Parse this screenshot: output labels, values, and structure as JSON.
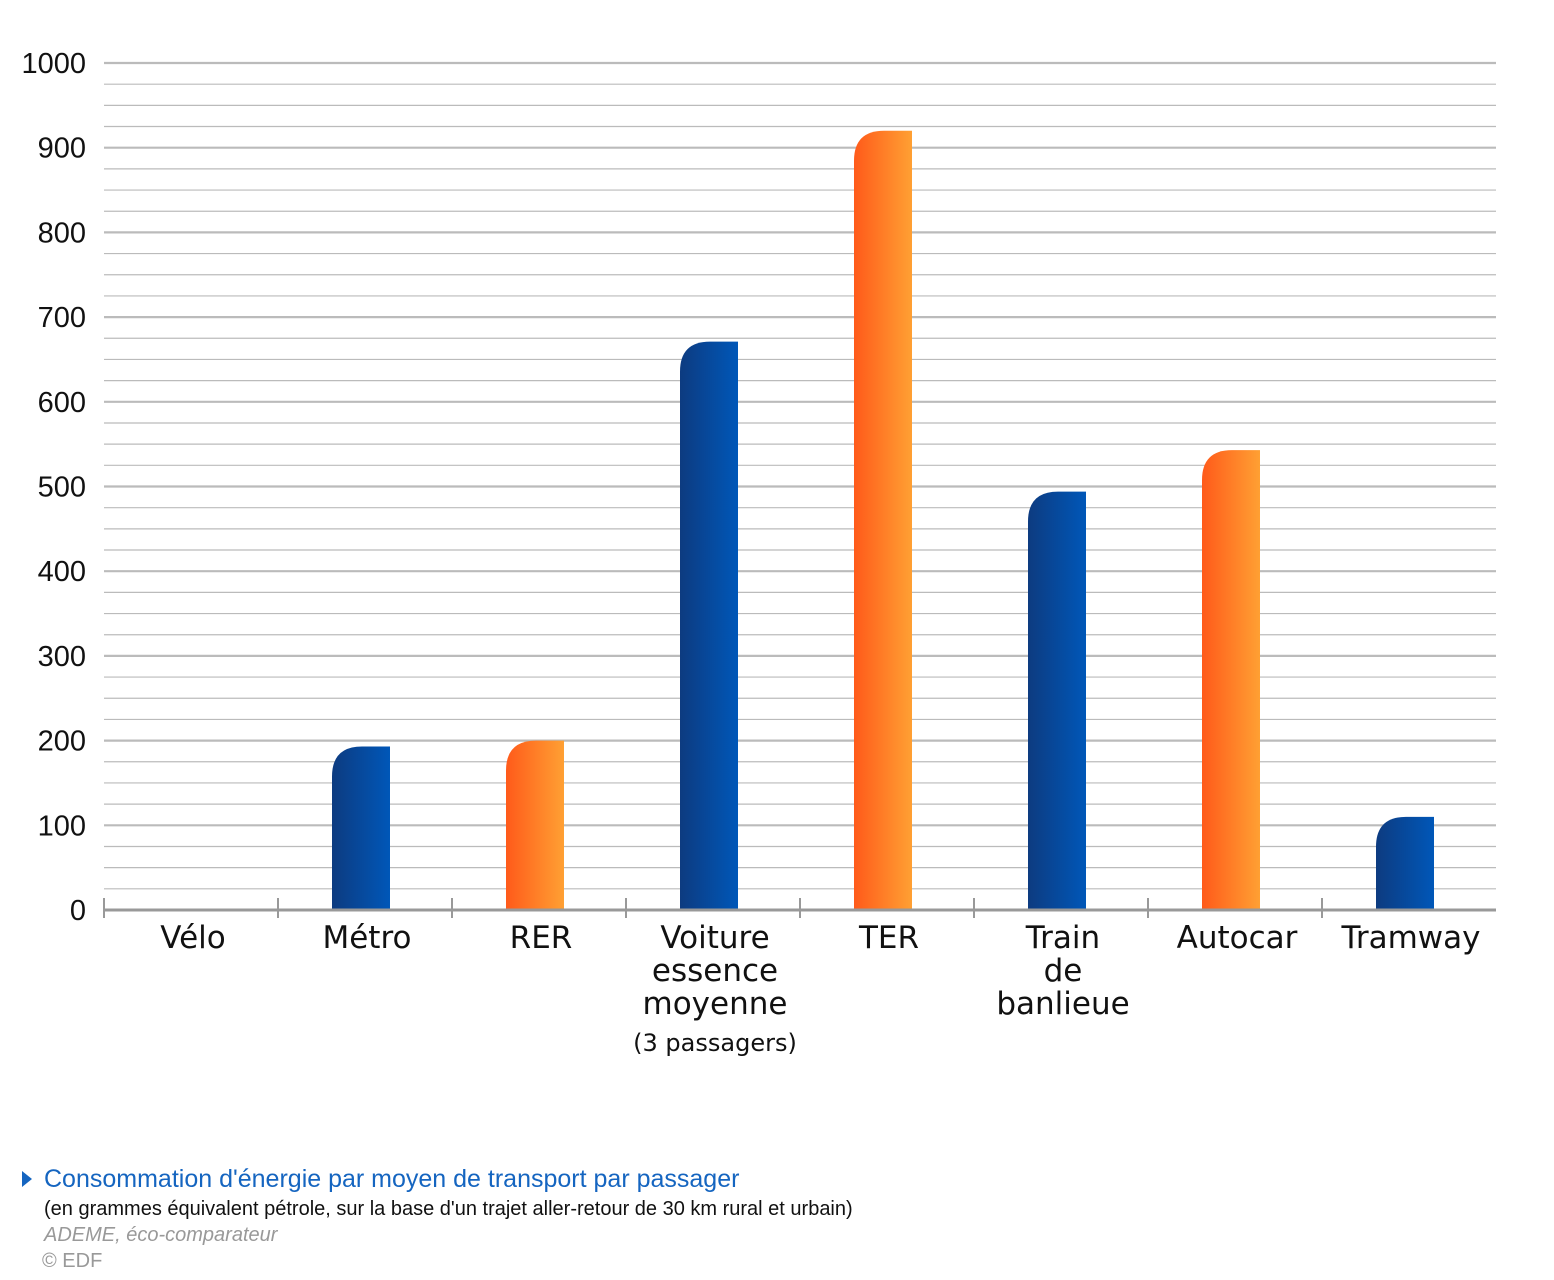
{
  "chart_data": {
    "type": "bar",
    "categories": [
      "Vélo",
      "Métro",
      "RER",
      "Voiture essence moyenne (3 passagers)",
      "TER",
      "Train de banlieue",
      "Autocar",
      "Tramway"
    ],
    "category_label_lines": [
      [
        "Vélo"
      ],
      [
        "Métro"
      ],
      [
        "RER"
      ],
      [
        "Voiture",
        "essence",
        "moyenne",
        "(3 passagers)"
      ],
      [
        "TER"
      ],
      [
        "Train",
        "de",
        "banlieue"
      ],
      [
        "Autocar"
      ],
      [
        "Tramway"
      ]
    ],
    "values": [
      0,
      193,
      200,
      671,
      920,
      494,
      543,
      110
    ],
    "bar_colors": [
      "blue",
      "blue",
      "orange",
      "blue",
      "orange",
      "blue",
      "orange",
      "blue"
    ],
    "colors": {
      "blue_dark": "#0d3b80",
      "blue_light": "#0057b8",
      "orange_dark": "#ff5a1a",
      "orange_light": "#ffa033",
      "grid": "#bbbbbb",
      "axis": "#999999"
    },
    "ylim": [
      0,
      1000
    ],
    "yticks": [
      0,
      100,
      200,
      300,
      400,
      500,
      600,
      700,
      800,
      900,
      1000
    ],
    "minor_grid_step": 25,
    "grid": true,
    "legend": false
  },
  "caption": {
    "title": "Consommation d'énergie par moyen de transport par passager",
    "subtitle": "(en grammes équivalent pétrole, sur la base d'un trajet aller-retour de 30 km rural et urbain)",
    "source": "ADEME, éco-comparateur",
    "copyright": "© EDF"
  }
}
